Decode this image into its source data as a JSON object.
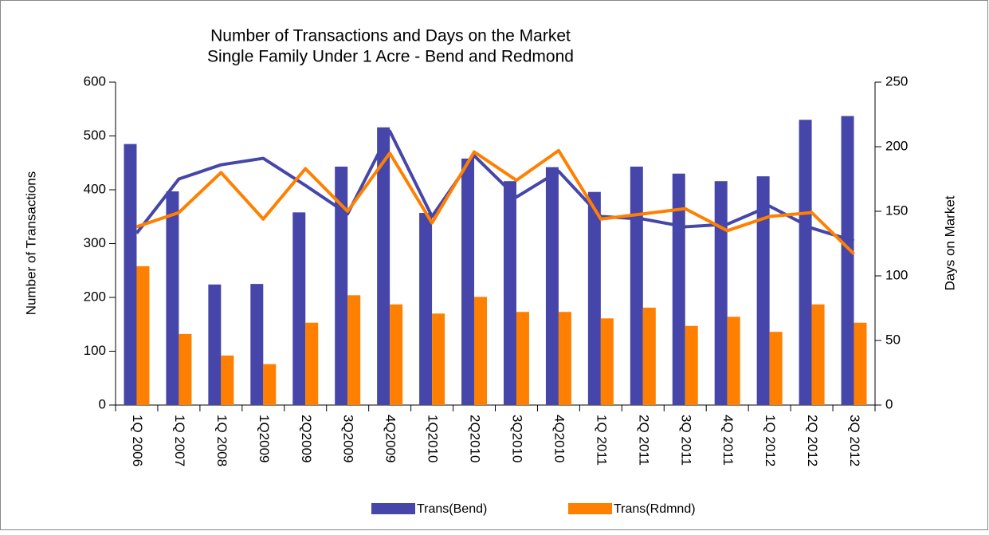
{
  "chart_data": {
    "type": "bar",
    "title": "Number of Transactions and Days on the Market",
    "subtitle": "Single Family Under 1 Acre - Bend and Redmond",
    "y_label": "Number of Transactions",
    "y2_label": "Days on Market",
    "categories": [
      "1Q 2006",
      "1Q 2007",
      "1Q 2008",
      "1Q2009",
      "2Q2009",
      "3Q2009",
      "4Q2009",
      "1Q2010",
      "2Q2010",
      "3Q2010",
      "4Q2010",
      "1Q 2011",
      "2Q 2011",
      "3Q 2011",
      "4Q 2011",
      "1Q 2012",
      "2Q 2012",
      "3Q 2012"
    ],
    "series": [
      {
        "name": "Trans(Bend)",
        "type": "bar",
        "color": "#4646aa",
        "values": [
          485,
          397,
          224,
          225,
          358,
          443,
          516,
          357,
          458,
          416,
          442,
          396,
          443,
          430,
          416,
          425,
          530,
          537
        ]
      },
      {
        "name": "Trans(Rdmnd)",
        "type": "bar",
        "color": "#ff8000",
        "values": [
          258,
          132,
          92,
          76,
          153,
          204,
          187,
          170,
          201,
          173,
          173,
          161,
          181,
          147,
          164,
          136,
          187,
          153
        ]
      },
      {
        "type": "line",
        "axis": "y2",
        "color": "#4646aa",
        "values": [
          133,
          175,
          186,
          191,
          170,
          148,
          212,
          146,
          193,
          161,
          181,
          146,
          144,
          138,
          140,
          154,
          137,
          127
        ]
      },
      {
        "type": "line",
        "axis": "y2",
        "color": "#ff8000",
        "values": [
          138,
          149,
          180,
          144,
          183,
          150,
          195,
          141,
          196,
          174,
          197,
          144,
          148,
          152,
          135,
          146,
          149,
          117
        ]
      }
    ],
    "ylim": [
      0,
      600
    ],
    "yticks": [
      0,
      100,
      200,
      300,
      400,
      500,
      600
    ],
    "y2lim": [
      0,
      250
    ],
    "y2ticks": [
      0,
      50,
      100,
      150,
      200,
      250
    ],
    "legend": "bottom"
  }
}
